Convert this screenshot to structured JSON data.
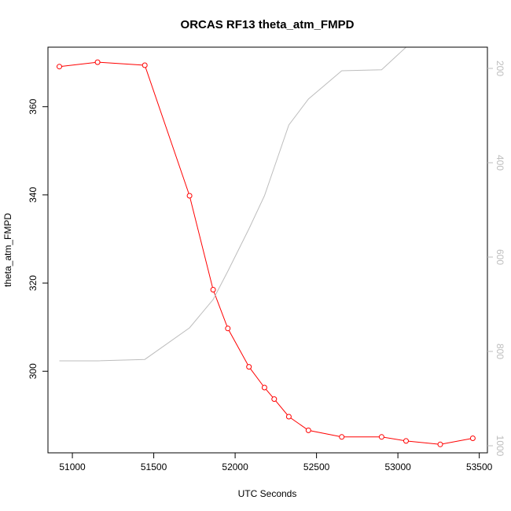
{
  "chart_data": {
    "type": "line",
    "title": "ORCAS RF13 theta_atm_FMPD",
    "xlabel": "UTC Seconds",
    "ylabel": "theta_atm_FMPD",
    "xlim": [
      50850,
      53550
    ],
    "ylim": [
      281.5,
      373.5
    ],
    "x_ticks": [
      51000,
      51500,
      52000,
      52500,
      53000,
      53500
    ],
    "y_ticks": [
      300,
      320,
      340,
      360
    ],
    "y2_ticks": [
      200,
      400,
      600,
      800,
      1000
    ],
    "y2lim": [
      1015,
      155
    ],
    "y2_reversed": true,
    "grid": false,
    "series": [
      {
        "color": "#ff0000",
        "axis": "left",
        "marker": "open-circle",
        "x": [
          50920,
          51155,
          51445,
          51720,
          51865,
          51955,
          52085,
          52180,
          52240,
          52330,
          52450,
          52655,
          52900,
          53050,
          53260,
          53460
        ],
        "y": [
          369.1,
          370.1,
          369.4,
          339.8,
          318.5,
          309.7,
          301.0,
          296.3,
          293.7,
          289.7,
          286.6,
          285.1,
          285.1,
          284.2,
          283.4,
          284.8
        ]
      },
      {
        "color": "#bdbdbd",
        "axis": "right",
        "marker": "none",
        "x": [
          50920,
          51155,
          51445,
          51720,
          51865,
          51955,
          52085,
          52180,
          52240,
          52330,
          52450,
          52655,
          52900,
          53050,
          53260,
          53460
        ],
        "y": [
          820,
          820,
          817,
          750,
          690,
          630,
          540,
          470,
          410,
          320,
          265,
          205,
          203,
          155,
          130,
          105
        ]
      }
    ]
  }
}
